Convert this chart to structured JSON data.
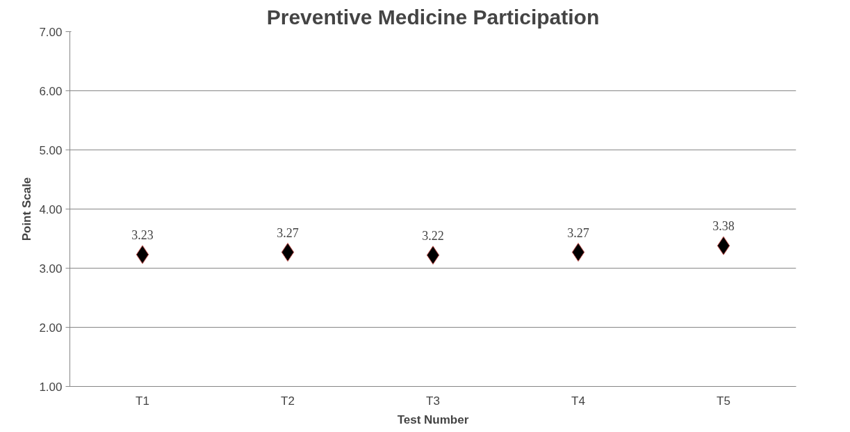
{
  "chart_data": {
    "type": "scatter",
    "title": "Preventive Medicine Participation",
    "xlabel": "Test Number",
    "ylabel": "Point Scale",
    "categories": [
      "T1",
      "T2",
      "T3",
      "T4",
      "T5"
    ],
    "series": [
      {
        "color": "#000000",
        "values": [
          3.23,
          3.27,
          3.22,
          3.27,
          3.38
        ]
      }
    ],
    "ylim": [
      1,
      7
    ],
    "yticks": [
      {
        "value": 1,
        "label": "1.00"
      },
      {
        "value": 2,
        "label": "2.00"
      },
      {
        "value": 3,
        "label": "3.00"
      },
      {
        "value": 4,
        "label": "4.00"
      },
      {
        "value": 5,
        "label": "5.00"
      },
      {
        "value": 6,
        "label": "6.00"
      },
      {
        "value": 7,
        "label": "7.00"
      }
    ],
    "grid": "y",
    "marker": "diamond",
    "data_labels": true
  }
}
